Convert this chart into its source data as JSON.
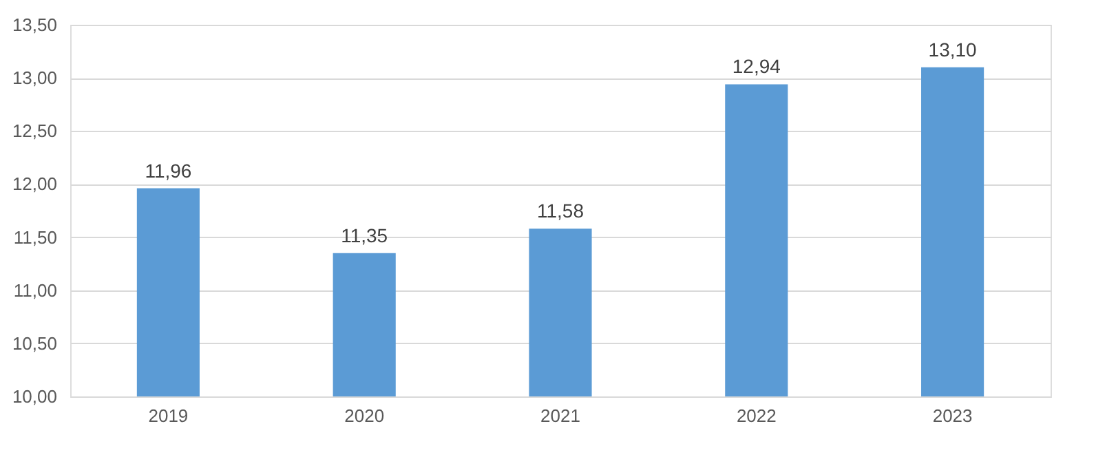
{
  "chart_data": {
    "type": "bar",
    "categories": [
      "2019",
      "2020",
      "2021",
      "2022",
      "2023"
    ],
    "values": [
      11.96,
      11.35,
      11.58,
      12.94,
      13.1
    ],
    "value_labels": [
      "11,96",
      "11,35",
      "11,58",
      "12,94",
      "13,10"
    ],
    "color": "#5b9bd5",
    "ylim": [
      10,
      13.5
    ],
    "yticks": [
      {
        "value": 10,
        "label": "10,00"
      },
      {
        "value": 10.5,
        "label": "10,50"
      },
      {
        "value": 11,
        "label": "11,00"
      },
      {
        "value": 11.5,
        "label": "11,50"
      },
      {
        "value": 12,
        "label": "12,00"
      },
      {
        "value": 12.5,
        "label": "12,50"
      },
      {
        "value": 13,
        "label": "13,00"
      },
      {
        "value": 13.5,
        "label": "13,50"
      }
    ],
    "grid": "y"
  }
}
